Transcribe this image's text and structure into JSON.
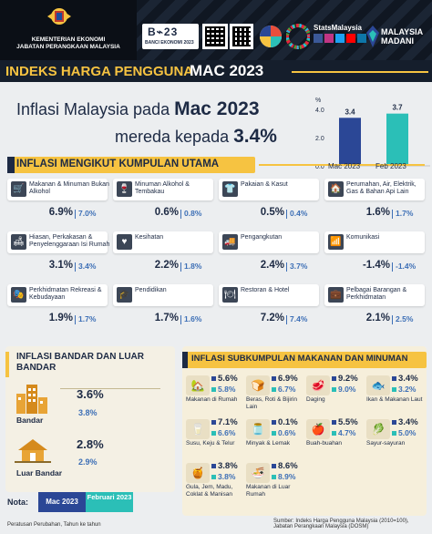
{
  "header": {
    "ministry_line1": "KEMENTERIAN EKONOMI",
    "ministry_line2": "JABATAN PERANGKAAN MALAYSIA",
    "logo_banci": "BANCI EKONOMI 2023",
    "logo_stats": "StatsMalaysia",
    "logo_madani_1": "MALAYSIA",
    "logo_madani_2": "MADANI"
  },
  "title": {
    "main": "INDEKS HARGA PENGGUNA",
    "period": "MAC 2023"
  },
  "headline": {
    "line1": "Inflasi Malaysia pada",
    "line1_bold": "Mac 2023",
    "line2": "mereda kepada",
    "line2_bold": "3.4%"
  },
  "chart_data": {
    "type": "bar",
    "unit": "%",
    "categories": [
      "Mac 2023",
      "Feb 2023"
    ],
    "values": [
      3.4,
      3.7
    ],
    "labels": [
      "3.4",
      "3.7"
    ],
    "ylim": [
      0,
      4.0
    ],
    "ticks": [
      "0.0",
      "2.0",
      "4.0"
    ],
    "colors": [
      "#2b4796",
      "#2bbfb7"
    ]
  },
  "section_main": "INFLASI MENGIKUT KUMPULAN UTAMA",
  "groups": [
    {
      "label": "Makanan & Minuman Bukan Alkohol",
      "v1": "6.9%",
      "v2": "7.0%"
    },
    {
      "label": "Minuman Alkohol & Tembakau",
      "v1": "0.6%",
      "v2": "0.8%"
    },
    {
      "label": "Pakaian & Kasut",
      "v1": "0.5%",
      "v2": "0.4%"
    },
    {
      "label": "Perumahan, Air, Elektrik, Gas & Bahan Api Lain",
      "v1": "1.6%",
      "v2": "1.7%"
    },
    {
      "label": "Hiasan, Perkakasan & Penyelenggaraan Isi Rumah",
      "v1": "3.1%",
      "v2": "3.4%"
    },
    {
      "label": "Kesihatan",
      "v1": "2.2%",
      "v2": "1.8%"
    },
    {
      "label": "Pengangkutan",
      "v1": "2.4%",
      "v2": "3.7%"
    },
    {
      "label": "Komunikasi",
      "v1": "-1.4%",
      "v2": "-1.4%"
    },
    {
      "label": "Perkhidmatan Rekreasi & Kebudayaan",
      "v1": "1.9%",
      "v2": "1.7%"
    },
    {
      "label": "Pendidikan",
      "v1": "1.7%",
      "v2": "1.6%"
    },
    {
      "label": "Restoran & Hotel",
      "v1": "7.2%",
      "v2": "7.4%"
    },
    {
      "label": "Pelbagai Barangan & Perkhidmatan",
      "v1": "2.1%",
      "v2": "2.5%"
    }
  ],
  "urban": {
    "title": "INFLASI BANDAR DAN LUAR BANDAR",
    "bandar_label": "Bandar",
    "bandar_v1": "3.6%",
    "bandar_v2": "3.8%",
    "luar_label": "Luar Bandar",
    "luar_v1": "2.8%",
    "luar_v2": "2.9%"
  },
  "food": {
    "title": "INFLASI SUBKUMPULAN MAKANAN DAN MINUMAN",
    "items": [
      {
        "label": "Makanan di Rumah",
        "v1": "5.6%",
        "v2": "5.8%"
      },
      {
        "label": "Beras, Roti & Bijirin Lain",
        "v1": "6.9%",
        "v2": "6.7%"
      },
      {
        "label": "Daging",
        "v1": "9.2%",
        "v2": "9.0%"
      },
      {
        "label": "Ikan & Makanan Laut",
        "v1": "3.4%",
        "v2": "3.2%"
      },
      {
        "label": "Susu, Keju & Telur",
        "v1": "7.1%",
        "v2": "6.6%"
      },
      {
        "label": "Minyak & Lemak",
        "v1": "0.1%",
        "v2": "0.6%"
      },
      {
        "label": "Buah-buahan",
        "v1": "5.5%",
        "v2": "4.7%"
      },
      {
        "label": "Sayur-sayuran",
        "v1": "3.4%",
        "v2": "5.0%"
      },
      {
        "label": "Gula, Jem, Madu, Coklat & Manisan",
        "v1": "3.8%",
        "v2": "3.8%"
      },
      {
        "label": "Makanan di Luar Rumah",
        "v1": "8.6%",
        "v2": "8.9%"
      }
    ]
  },
  "note": {
    "label": "Nota:",
    "mac": "Mac 2023",
    "feb": "Februari 2023",
    "colors": {
      "mac": "#2b4796",
      "feb": "#2bbfb7"
    }
  },
  "footer": {
    "source": "Sumber: Indeks Harga Pengguna Malaysia (2010=100), Jabatan Perangkaan Malaysia (DOSM)",
    "caution": "Peratusan Perubahan, Tahun ke tahun"
  }
}
